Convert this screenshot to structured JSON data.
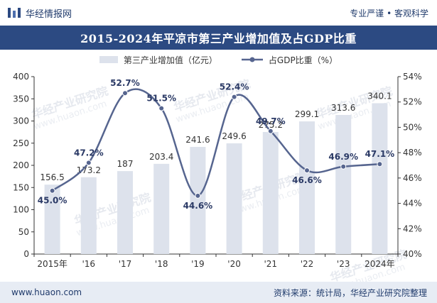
{
  "header": {
    "brand_name": "华经情报网",
    "tagline": "专业严谨 • 客观科学"
  },
  "footer": {
    "website": "www.huaon.com",
    "source": "资料来源：统计局，华经产业研究院整理"
  },
  "watermark": {
    "text": "华经产业研究院",
    "url": "www.huaon.com"
  },
  "colors": {
    "title_band": "#2c4a82",
    "bar": "#dde2ec",
    "line": "#56658f",
    "footer_band": "#e7ecf4"
  },
  "chart_data": {
    "type": "bar",
    "title": "2015-2024年平凉市第三产业增加值及占GDP比重",
    "categories": [
      "2015年",
      "'16",
      "'17",
      "'18",
      "'19",
      "'20",
      "'21",
      "'22",
      "'23",
      "2024年"
    ],
    "series": [
      {
        "name": "第三产业增加值（亿元）",
        "type": "bar",
        "axis": "left",
        "values": [
          156.5,
          173.2,
          187,
          203.4,
          241.6,
          249.6,
          275.2,
          299.1,
          313.6,
          340.1
        ],
        "labels": [
          "156.5",
          "173.2",
          "187",
          "203.4",
          "241.6",
          "249.6",
          "275.2",
          "299.1",
          "313.6",
          "340.1"
        ]
      },
      {
        "name": "占GDP比重（%）",
        "type": "line",
        "smooth": true,
        "axis": "right",
        "values": [
          45.0,
          47.2,
          52.7,
          51.5,
          44.6,
          52.4,
          49.7,
          46.6,
          46.9,
          47.1
        ],
        "labels": [
          "45.0%",
          "47.2%",
          "52.7%",
          "51.5%",
          "44.6%",
          "52.4%",
          "49.7%",
          "46.6%",
          "46.9%",
          "47.1%"
        ]
      }
    ],
    "y_left": {
      "lim": [
        0,
        400
      ],
      "ticks": [
        0,
        50,
        100,
        150,
        200,
        250,
        300,
        350,
        400
      ],
      "tick_labels": [
        "0",
        "50",
        "100",
        "150",
        "200",
        "250",
        "300",
        "350",
        "400"
      ]
    },
    "y_right": {
      "lim": [
        40,
        54
      ],
      "ticks": [
        40,
        42,
        44,
        46,
        48,
        50,
        52,
        54
      ],
      "tick_labels": [
        "40%",
        "42%",
        "44%",
        "46%",
        "48%",
        "50%",
        "52%",
        "54%"
      ]
    },
    "grid": false,
    "legend_position": "top-center"
  }
}
